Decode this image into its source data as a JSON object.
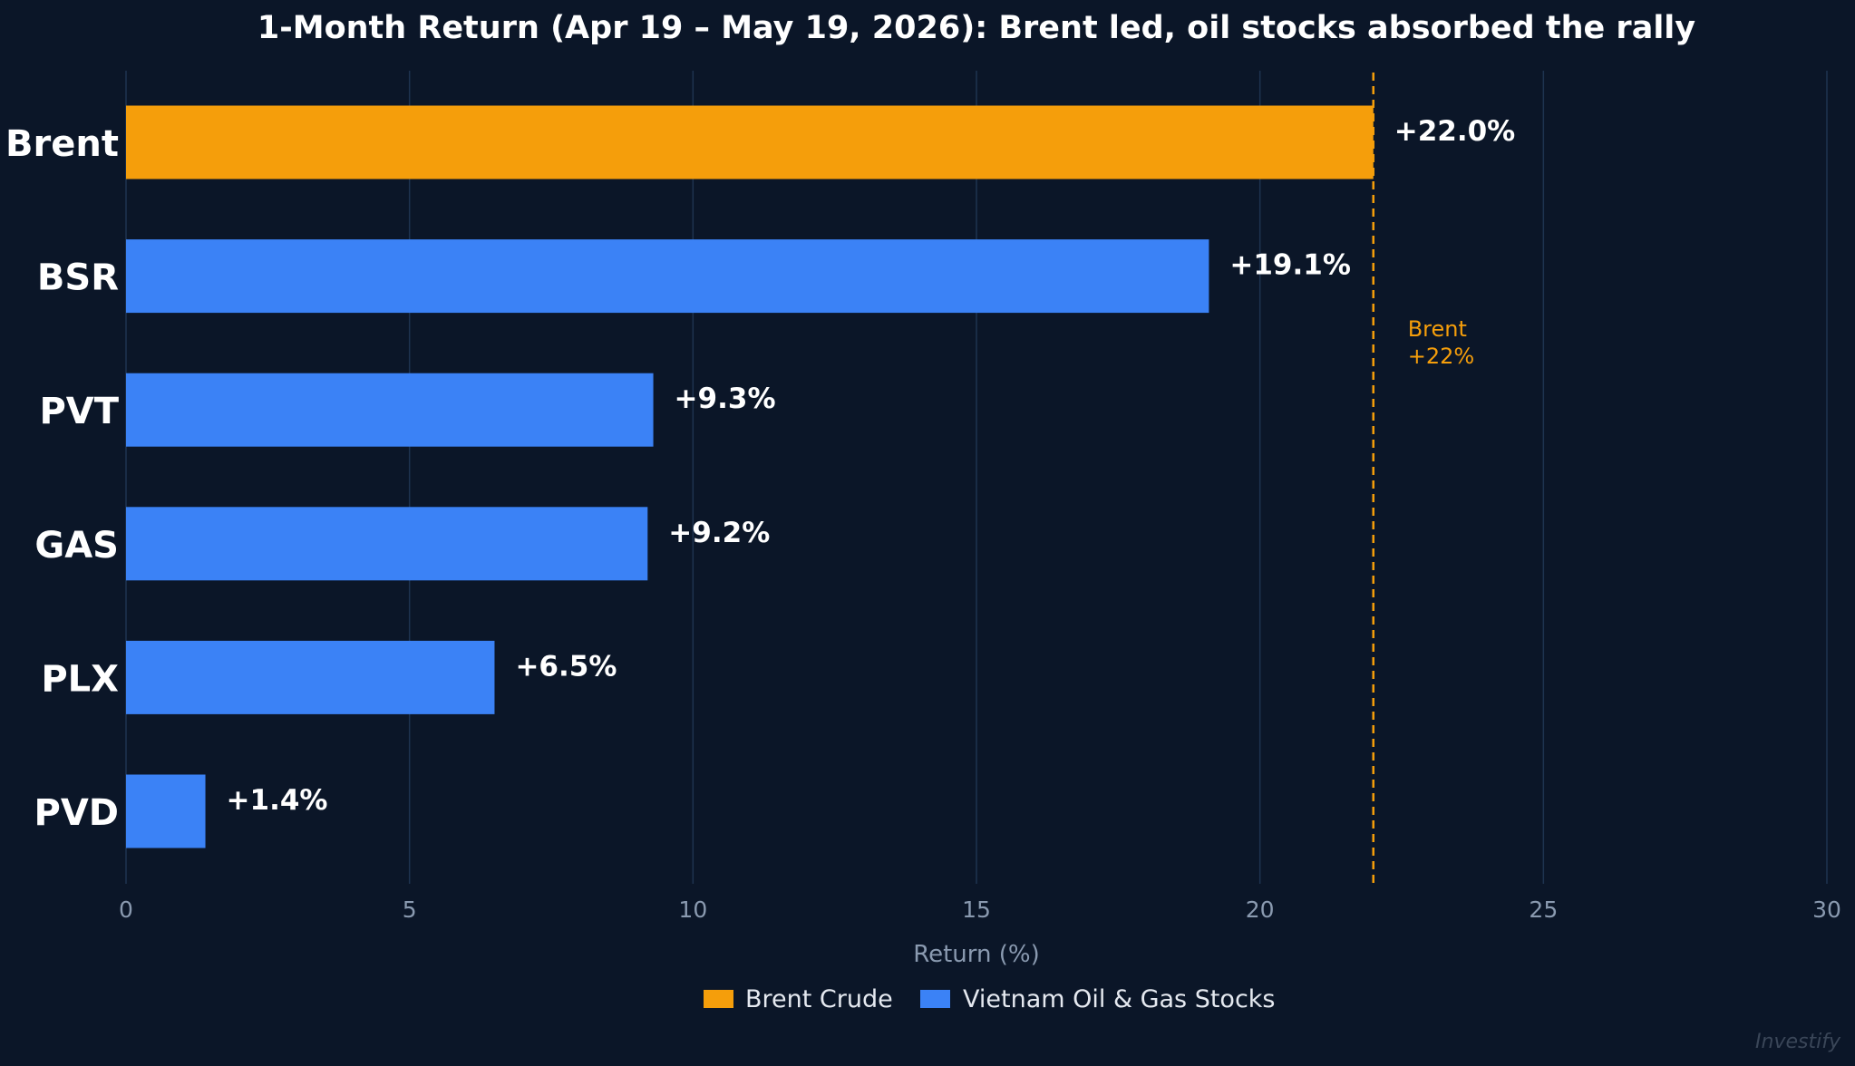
{
  "chart_data": {
    "type": "bar",
    "orientation": "horizontal",
    "title": "1-Month Return (Apr 19 – May 19, 2026): Brent led, oil stocks absorbed the rally",
    "xlabel": "Return (%)",
    "ylabel": "",
    "xlim": [
      0,
      30
    ],
    "xticks": [
      0,
      5,
      10,
      15,
      20,
      25,
      30
    ],
    "tick_labels": [
      "0",
      "5",
      "10",
      "15",
      "20",
      "25",
      "30"
    ],
    "grid": "vertical",
    "legend_position": "bottom-center",
    "categories": [
      "Brent",
      "BSR",
      "PVT",
      "GAS",
      "PLX",
      "PVD"
    ],
    "values": [
      22.0,
      19.1,
      9.3,
      9.2,
      6.5,
      1.4
    ],
    "value_labels": [
      "+22.0%",
      "+19.1%",
      "+9.3%",
      "+9.2%",
      "+6.5%",
      "+1.4%"
    ],
    "bar_series": [
      "brent",
      "stocks",
      "stocks",
      "stocks",
      "stocks",
      "stocks"
    ],
    "series": [
      {
        "key": "brent",
        "name": "Brent Crude",
        "color": "#f59e0b"
      },
      {
        "key": "stocks",
        "name": "Vietnam Oil & Gas Stocks",
        "color": "#3b82f6"
      }
    ],
    "reference_line": {
      "value": 22,
      "label_line1": "Brent",
      "label_line2": "+22%",
      "color": "#f59e0b",
      "style": "dashed"
    }
  },
  "watermark": "Investify",
  "colors": {
    "background": "#0b1628",
    "grid": "#1e3350",
    "title": "#ffffff",
    "axis_text": "#8a9ab0",
    "category_text": "#ffffff",
    "value_text": "#ffffff",
    "legend_text": "#e5e9f0",
    "watermark": "#3a4658"
  }
}
